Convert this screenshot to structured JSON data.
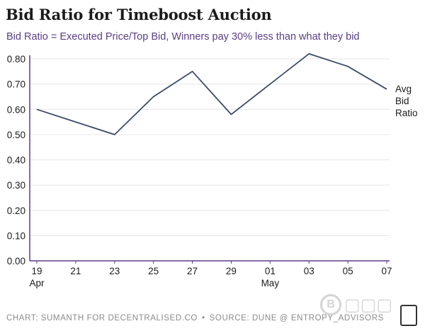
{
  "title": "Bid Ratio for Timeboost Auction",
  "subtitle": "Bid Ratio = Executed Price/Top Bid, Winners pay 30% less than what they bid",
  "footer": {
    "credit": "CHART: SUMANTH FOR DECENTRALISED.CO",
    "separator": "•",
    "source": "SOURCE: DUNE @ ENTROPY_ADVISORS"
  },
  "watermark_icon": "coin-b-icon",
  "logo_icon": "decentralised-logo-icon",
  "colors": {
    "line": "#3b4a6b",
    "grid": "#e6e6e6",
    "axis": "#5a3e85",
    "subtitle": "#5a3e85"
  },
  "chart_data": {
    "type": "line",
    "title": "Bid Ratio for Timeboost Auction",
    "xlabel": "",
    "ylabel": "",
    "x": [
      "19",
      "21",
      "23",
      "25",
      "27",
      "29",
      "01",
      "03",
      "05",
      "07"
    ],
    "x_secondary": [
      {
        "at": "19",
        "label": "Apr"
      },
      {
        "at": "01",
        "label": "May"
      }
    ],
    "y_ticks": [
      "0.00",
      "0.10",
      "0.20",
      "0.30",
      "0.40",
      "0.50",
      "0.60",
      "0.70",
      "0.80"
    ],
    "ylim": [
      0,
      0.82
    ],
    "grid": true,
    "series": [
      {
        "name": "Avg Bid Ratio",
        "label_lines": [
          "Avg",
          "Bid",
          "Ratio"
        ],
        "values": [
          0.6,
          0.55,
          0.5,
          0.65,
          0.75,
          0.58,
          0.7,
          0.82,
          0.77,
          0.68
        ]
      }
    ]
  }
}
